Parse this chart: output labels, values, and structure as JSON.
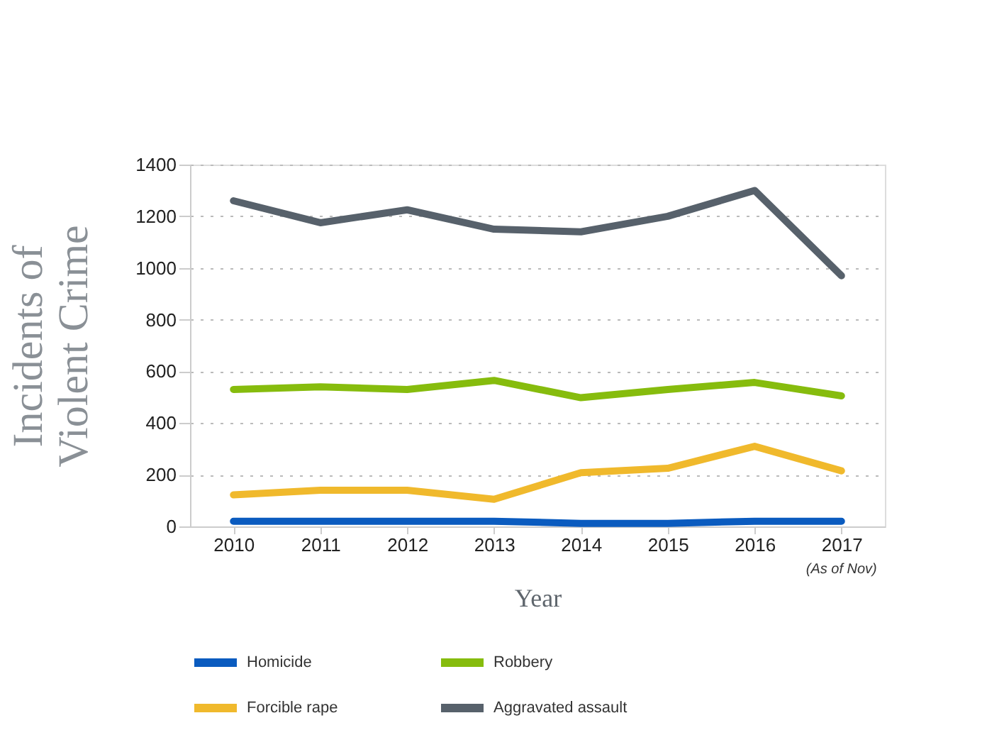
{
  "chart_data": {
    "type": "line",
    "xlabel": "Year",
    "ylabel": "Incidents of Violent Crime",
    "categories": [
      "2010",
      "2011",
      "2012",
      "2013",
      "2014",
      "2015",
      "2016",
      "2017"
    ],
    "series": [
      {
        "name": "Homicide",
        "color": "#0a5bbf",
        "values": [
          20,
          20,
          20,
          20,
          12,
          12,
          20,
          20
        ]
      },
      {
        "name": "Robbery",
        "color": "#86bc0d",
        "values": [
          530,
          540,
          530,
          565,
          498,
          530,
          557,
          505
        ]
      },
      {
        "name": "Forcible rape",
        "color": "#f0b92c",
        "values": [
          122,
          140,
          140,
          105,
          208,
          225,
          310,
          215
        ]
      },
      {
        "name": "Aggravated assault",
        "color": "#57616b",
        "values": [
          1260,
          1175,
          1225,
          1150,
          1140,
          1200,
          1300,
          970
        ]
      }
    ],
    "ylim": [
      0,
      1400
    ],
    "yticks": [
      0,
      200,
      400,
      600,
      800,
      1000,
      1200,
      1400
    ],
    "annotations": [
      "(As of Nov)"
    ],
    "grid": "y",
    "legend": "bottom",
    "marker": "none",
    "line_style": "solid"
  }
}
